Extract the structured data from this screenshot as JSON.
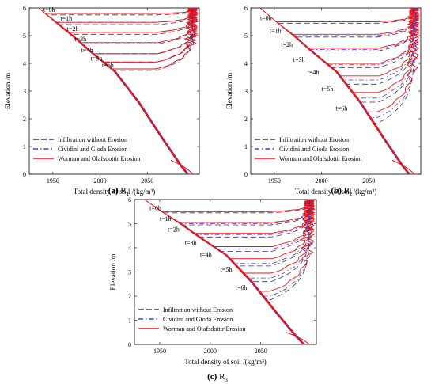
{
  "colors": {
    "infiltration": "#3a3a3a",
    "cividini": "#3b3bd6",
    "worman": "#e8161e",
    "axis": "#000000"
  },
  "chart_data": [
    {
      "type": "line",
      "caption_letter": "(a)",
      "caption_name": "R",
      "caption_sub": "1",
      "xlabel": "Total density of soil /(kg/m³)",
      "ylabel": "Elevation /m",
      "xlim": [
        1925,
        2105
      ],
      "ylim": [
        0,
        6
      ],
      "xticks": [
        1950,
        2000,
        2050
      ],
      "yticks": [
        0,
        1,
        2,
        3,
        4,
        5,
        6
      ],
      "grid": false,
      "legend_position": "bottom-left",
      "legend": [
        {
          "label": "Infiltration without Erosion",
          "style": "dashed",
          "color_key": "infiltration"
        },
        {
          "label": "Cividini and Gioda  Erosion",
          "style": "dashdot",
          "color_key": "cividini"
        },
        {
          "label": "Worman and Olafsdottir Erosion",
          "style": "solid",
          "color_key": "worman"
        }
      ],
      "dry_profile": {
        "x": [
          1935,
          1952,
          1970,
          1990,
          2015,
          2040,
          2065,
          2085,
          2092
        ],
        "y": [
          6.0,
          5.5,
          5.0,
          4.4,
          3.7,
          2.6,
          1.3,
          0.3,
          0.0
        ]
      },
      "wet_density": [
        2085,
        2088,
        2091
      ],
      "wet_density_labels": [
        "Infiltration without Erosion",
        "Cividini and Gioda  Erosion",
        "Worman and Olafsdottir Erosion"
      ],
      "curves": [
        {
          "time": "t=0h",
          "label_x": 1940,
          "front": [
            5.75,
            5.8,
            5.8
          ]
        },
        {
          "time": "t=1h",
          "label_x": 1958,
          "front": [
            5.4,
            5.48,
            5.48
          ]
        },
        {
          "time": "t=2h",
          "label_x": 1965,
          "front": [
            5.05,
            5.12,
            5.12
          ]
        },
        {
          "time": "t=3h",
          "label_x": 1973,
          "front": [
            4.7,
            4.75,
            4.75
          ]
        },
        {
          "time": "t=4h",
          "label_x": 1980,
          "front": [
            4.35,
            4.35,
            4.35
          ]
        },
        {
          "time": "t=5h",
          "label_x": 1990,
          "front": [
            4.05,
            4.05,
            4.05
          ]
        },
        {
          "time": "t=6h",
          "label_x": 2002,
          "front": [
            3.75,
            3.8,
            3.8
          ]
        }
      ]
    },
    {
      "type": "line",
      "caption_letter": "(b)",
      "caption_name": "R",
      "caption_sub": "2",
      "xlabel": "Total density of soil /(kg/m³)",
      "ylabel": "Elevation /m",
      "xlim": [
        1925,
        2105
      ],
      "ylim": [
        0,
        6
      ],
      "xticks": [
        1950,
        2000,
        2050
      ],
      "yticks": [
        0,
        1,
        2,
        3,
        4,
        5,
        6
      ],
      "grid": false,
      "legend_position": "bottom-left",
      "legend": [
        {
          "label": "Infiltration without Erosion",
          "style": "dashed",
          "color_key": "infiltration"
        },
        {
          "label": "Cividini and Gioda  Erosion",
          "style": "dashdot",
          "color_key": "cividini"
        },
        {
          "label": "Worman and Olafsdottir Erosion",
          "style": "solid",
          "color_key": "worman"
        }
      ],
      "dry_profile": {
        "x": [
          1935,
          1952,
          1970,
          1990,
          2015,
          2040,
          2065,
          2085,
          2092
        ],
        "y": [
          6.0,
          5.5,
          5.0,
          4.4,
          3.7,
          2.6,
          1.3,
          0.3,
          0.0
        ]
      },
      "wet_density": [
        2085,
        2088,
        2091
      ],
      "wet_density_labels": [
        "Infiltration without Erosion",
        "Cividini and Gioda  Erosion",
        "Worman and Olafsdottir Erosion"
      ],
      "curves": [
        {
          "time": "t=0h",
          "label_x": 1935,
          "front": [
            5.45,
            5.5,
            5.5
          ]
        },
        {
          "time": "t=1h",
          "label_x": 1945,
          "front": [
            4.95,
            5.0,
            5.05
          ]
        },
        {
          "time": "t=2h",
          "label_x": 1957,
          "front": [
            4.45,
            4.5,
            4.55
          ]
        },
        {
          "time": "t=3h",
          "label_x": 1970,
          "front": [
            3.85,
            3.95,
            4.0
          ]
        },
        {
          "time": "t=4h",
          "label_x": 1985,
          "front": [
            3.25,
            3.4,
            3.55
          ]
        },
        {
          "time": "t=5h",
          "label_x": 2000,
          "front": [
            2.6,
            2.75,
            2.95
          ]
        },
        {
          "time": "t=6h",
          "label_x": 2015,
          "front": [
            1.85,
            2.05,
            2.25
          ]
        }
      ]
    },
    {
      "type": "line",
      "caption_letter": "(c)",
      "caption_name": "R",
      "caption_sub": "3",
      "xlabel": "Total density of soil /(kg/m³)",
      "ylabel": "Elevation /m",
      "xlim": [
        1925,
        2105
      ],
      "ylim": [
        0,
        6
      ],
      "xticks": [
        1950,
        2000,
        2050
      ],
      "yticks": [
        0,
        1,
        2,
        3,
        4,
        5,
        6
      ],
      "grid": false,
      "legend_position": "bottom-left",
      "legend": [
        {
          "label": "Infiltration without Erosion",
          "style": "dashed",
          "color_key": "infiltration"
        },
        {
          "label": "Cividini and Gioda  Erosion",
          "style": "dashdot",
          "color_key": "cividini"
        },
        {
          "label": "Worman and Olafsdottir Erosion",
          "style": "solid",
          "color_key": "worman"
        }
      ],
      "dry_profile": {
        "x": [
          1935,
          1952,
          1970,
          1990,
          2015,
          2040,
          2065,
          2085,
          2092
        ],
        "y": [
          6.0,
          5.5,
          5.0,
          4.4,
          3.7,
          2.6,
          1.3,
          0.3,
          0.0
        ]
      },
      "wet_density": [
        2085,
        2088,
        2091
      ],
      "wet_density_labels": [
        "Infiltration without Erosion",
        "Cividini and Gioda  Erosion",
        "Worman and Olafsdottir Erosion"
      ],
      "curves": [
        {
          "time": "t=0h",
          "label_x": 1940,
          "front": [
            5.45,
            5.5,
            5.5
          ]
        },
        {
          "time": "t=1h",
          "label_x": 1950,
          "front": [
            4.95,
            5.0,
            5.05
          ]
        },
        {
          "time": "t=2h",
          "label_x": 1958,
          "front": [
            4.45,
            4.55,
            4.6
          ]
        },
        {
          "time": "t=3h",
          "label_x": 1975,
          "front": [
            3.85,
            3.95,
            4.05
          ]
        },
        {
          "time": "t=4h",
          "label_x": 1990,
          "front": [
            3.25,
            3.35,
            3.55
          ]
        },
        {
          "time": "t=5h",
          "label_x": 2010,
          "front": [
            2.6,
            2.75,
            2.95
          ]
        },
        {
          "time": "t=6h",
          "label_x": 2025,
          "front": [
            1.85,
            2.0,
            2.2
          ]
        }
      ]
    }
  ]
}
